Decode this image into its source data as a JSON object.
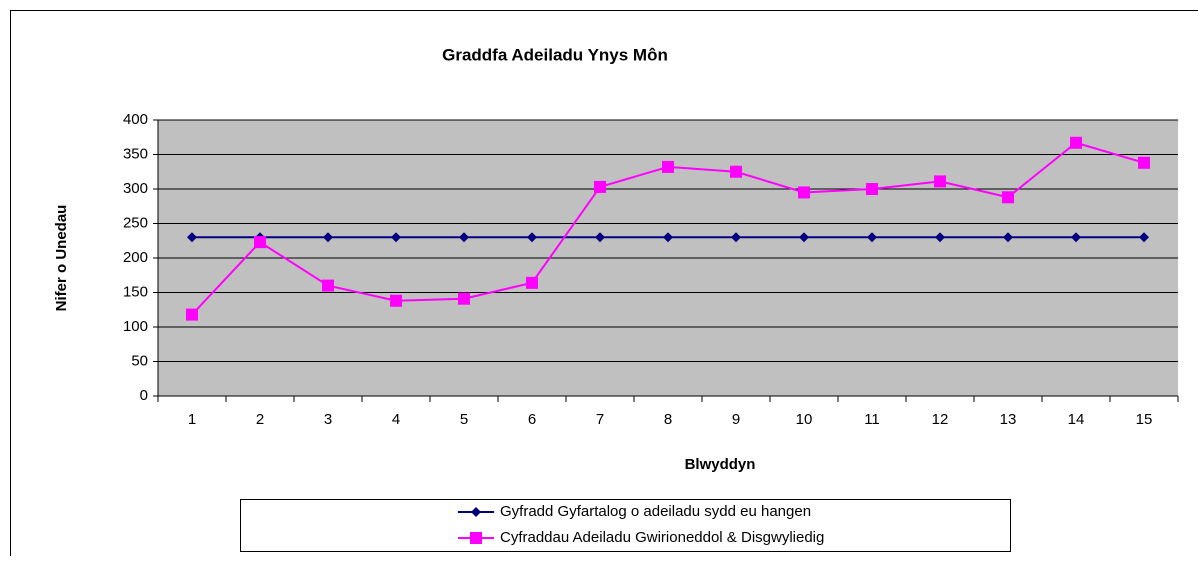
{
  "chart_data": {
    "type": "line",
    "title": "Graddfa Adeiladu Ynys Môn",
    "x_label": "Blwyddyn",
    "y_label": "Nifer o Unedau",
    "categories": [
      "1",
      "2",
      "3",
      "4",
      "5",
      "6",
      "7",
      "8",
      "9",
      "10",
      "11",
      "12",
      "13",
      "14",
      "15"
    ],
    "series": [
      {
        "name": "Gyfradd Gyfartalog o adeiladu sydd eu hangen",
        "color": "#000080",
        "marker": "diamond",
        "values": [
          230,
          230,
          230,
          230,
          230,
          230,
          230,
          230,
          230,
          230,
          230,
          230,
          230,
          230,
          230
        ]
      },
      {
        "name": "Cyfraddau Adeiladu Gwirioneddol & Disgwyliedig",
        "color": "#ff00ff",
        "marker": "square",
        "values": [
          118,
          223,
          160,
          138,
          141,
          164,
          303,
          332,
          325,
          295,
          300,
          311,
          288,
          367,
          338
        ]
      }
    ],
    "ylim": [
      0,
      400
    ],
    "yticks": [
      0,
      50,
      100,
      150,
      200,
      250,
      300,
      350,
      400
    ],
    "grid": true,
    "legend": "bottom"
  }
}
